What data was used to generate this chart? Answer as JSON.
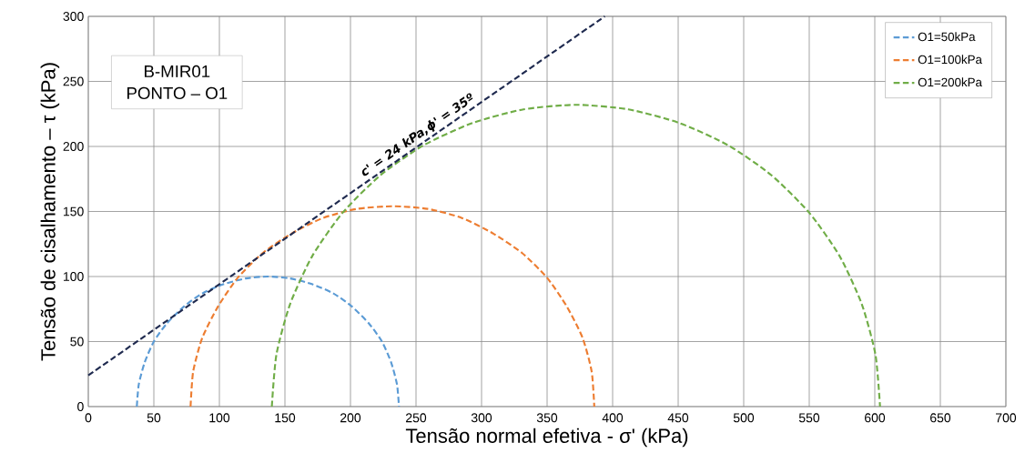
{
  "chart_data": {
    "type": "line",
    "xlabel": "Tensão normal efetiva - σ' (kPa)",
    "ylabel": "Tensão de cisalhamento – τ (kPa)",
    "xlim": [
      0,
      700
    ],
    "ylim": [
      0,
      300
    ],
    "xticks": [
      0,
      50,
      100,
      150,
      200,
      250,
      300,
      350,
      400,
      450,
      500,
      550,
      600,
      650,
      700
    ],
    "yticks": [
      0,
      50,
      100,
      150,
      200,
      250,
      300
    ],
    "grid": true,
    "legend": "top right",
    "series": [
      {
        "name": "O1=50kPa",
        "color": "#5b9bd5",
        "line_style": "dashed",
        "x": [
          37,
          38.5,
          43,
          50,
          60,
          73,
          87,
          103,
          120,
          137,
          154,
          171,
          187,
          201,
          214,
          224,
          231,
          235.5,
          237
        ],
        "values": [
          0,
          17,
          34,
          50,
          64,
          77,
          87,
          94,
          98.5,
          100,
          98.5,
          94,
          87,
          77,
          64,
          50,
          34,
          17,
          0
        ]
      },
      {
        "name": "O1=100kPa",
        "color": "#ed7d31",
        "line_style": "dashed",
        "x": [
          78,
          80,
          87,
          99,
          114,
          133,
          155,
          179,
          205,
          232,
          259,
          285,
          309,
          331,
          350,
          365,
          377,
          384,
          386
        ],
        "values": [
          0,
          27,
          53,
          77,
          99,
          118,
          133,
          145,
          152,
          154,
          152,
          145,
          133,
          118,
          99,
          77,
          53,
          27,
          0
        ]
      },
      {
        "name": "O1=200kPa",
        "color": "#70ad47",
        "line_style": "dashed",
        "x": [
          140,
          143.5,
          154,
          171,
          194,
          223,
          256,
          293,
          332,
          372,
          412,
          451,
          488,
          521,
          550,
          573,
          590,
          600.5,
          604
        ],
        "values": [
          0,
          40,
          79,
          116,
          149,
          178,
          201,
          218,
          228.5,
          232,
          228.5,
          218,
          201,
          178,
          149,
          116,
          79,
          40,
          0
        ]
      },
      {
        "color": "#1f2a4f",
        "line_style": "dashed",
        "x": [
          0,
          394
        ],
        "values": [
          24,
          300
        ]
      }
    ],
    "annotations": [
      "B-MIR01",
      "PONTO – O1",
      {
        "text": "c' = 24 kPa,ϕ' = 35º",
        "x": 255,
        "y": 203
      }
    ]
  }
}
